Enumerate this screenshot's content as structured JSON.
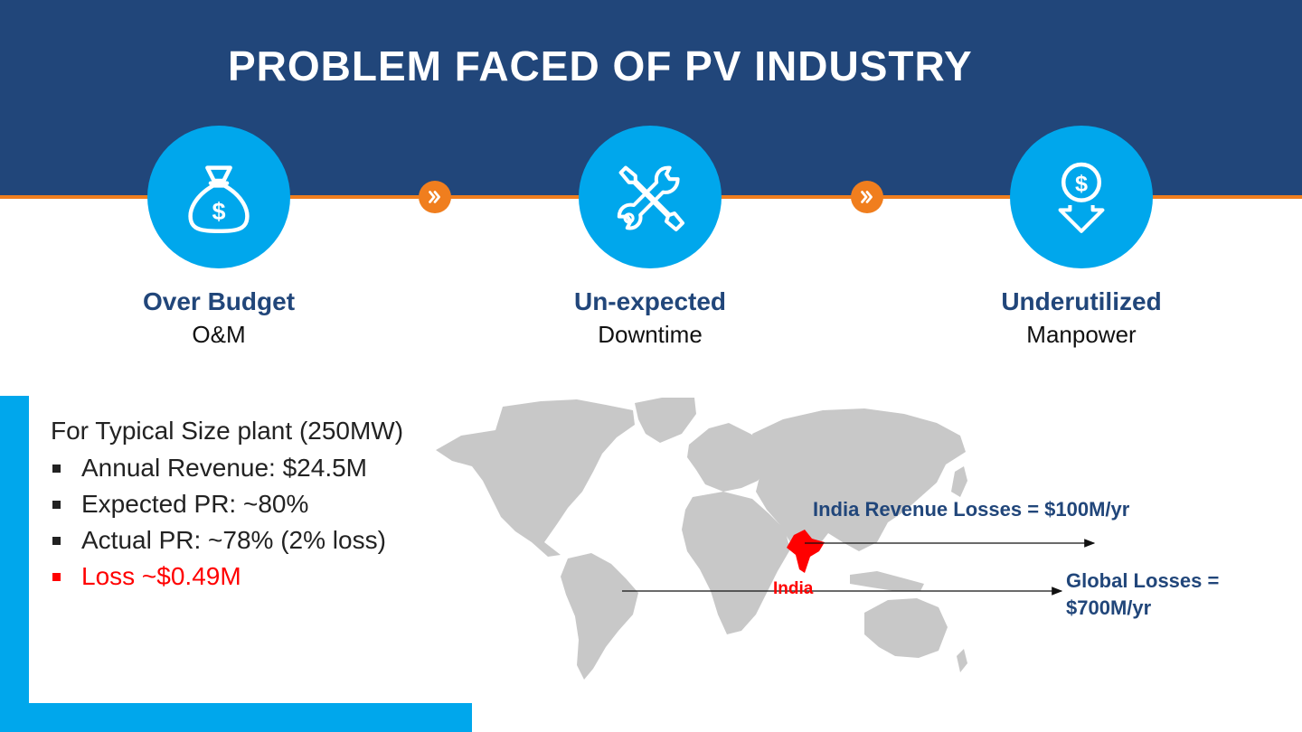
{
  "header": {
    "title": "PROBLEM FACED OF PV INDUSTRY"
  },
  "steps": [
    {
      "title": "Over Budget",
      "subtitle": "O&M",
      "icon": "money-bag-icon"
    },
    {
      "title": "Un-expected",
      "subtitle": "Downtime",
      "icon": "tools-icon"
    },
    {
      "title": "Underutilized",
      "subtitle": "Manpower",
      "icon": "dollar-down-arrow-icon"
    }
  ],
  "connector_icon": "double-chevron-right-icon",
  "plant_info": {
    "intro": "For Typical Size plant (250MW)",
    "bullets": [
      "Annual Revenue: $24.5M",
      "Expected PR: ~80%",
      "Actual PR: ~78% (2% loss)",
      "Loss ~$0.49M"
    ]
  },
  "map": {
    "highlight_label": "India",
    "india_losses": "India Revenue Losses = $100M/yr",
    "global_losses_line1": "Global Losses =",
    "global_losses_line2": "$700M/yr"
  },
  "colors": {
    "navy": "#21467a",
    "accent_blue": "#00a7ec",
    "orange": "#f07e1e",
    "loss_red": "#ff0000",
    "map_gray": "#c8c8c8"
  }
}
